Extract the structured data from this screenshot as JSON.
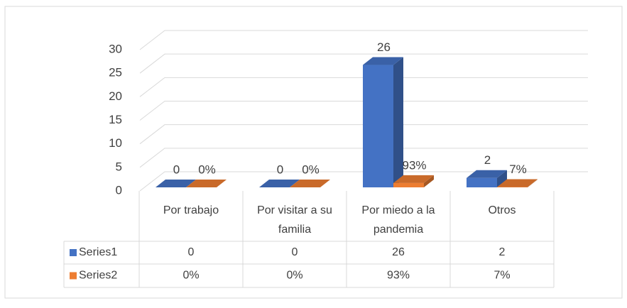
{
  "chart_data": {
    "type": "bar",
    "categories": [
      "Por trabajo",
      "Por visitar a su familia",
      "Por miedo a la pandemia",
      "Otros"
    ],
    "series": [
      {
        "name": "Series1",
        "color": "#4472c4",
        "values": [
          0,
          0,
          26,
          2
        ]
      },
      {
        "name": "Series2",
        "color": "#ed7d31",
        "values": [
          0,
          0,
          0.93,
          0.07
        ],
        "value_labels": [
          "0%",
          "0%",
          "93%",
          "7%"
        ]
      }
    ],
    "ylim": [
      0,
      30
    ],
    "yticks": [
      0,
      5,
      10,
      15,
      20,
      25,
      30
    ],
    "grid": true,
    "data_table": true
  }
}
